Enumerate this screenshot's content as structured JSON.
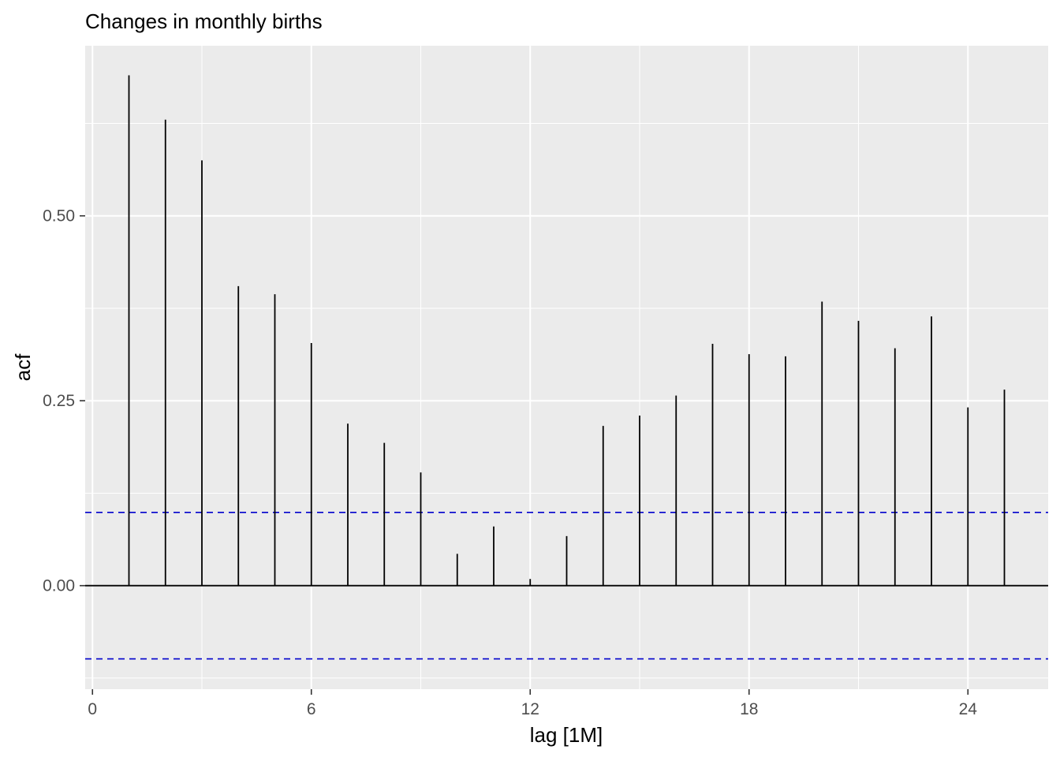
{
  "chart_data": {
    "type": "bar",
    "title": "Changes in monthly births",
    "xlabel": "lag [1M]",
    "ylabel": "acf",
    "x_ticks": [
      0,
      6,
      12,
      18,
      24
    ],
    "y_ticks": [
      0.0,
      0.25,
      0.5
    ],
    "x_tick_labels": [
      "0",
      "6",
      "12",
      "18",
      "24"
    ],
    "y_tick_labels": [
      "0.00",
      "0.25",
      "0.50"
    ],
    "xlim": [
      -0.2,
      26.2
    ],
    "ylim": [
      -0.14,
      0.73
    ],
    "grid": true,
    "confidence_bound": 0.099,
    "colors": {
      "panel": "#ebebeb",
      "grid": "#ffffff",
      "bar": "#000000",
      "bound": "#0000cc",
      "tick": "#333333"
    },
    "lags": [
      1,
      2,
      3,
      4,
      5,
      6,
      7,
      8,
      9,
      10,
      11,
      12,
      13,
      14,
      15,
      16,
      17,
      18,
      19,
      20,
      21,
      22,
      23,
      24,
      25
    ],
    "values": [
      0.69,
      0.63,
      0.575,
      0.405,
      0.394,
      0.328,
      0.219,
      0.193,
      0.153,
      0.043,
      0.08,
      0.009,
      0.067,
      0.216,
      0.23,
      0.257,
      0.327,
      0.313,
      0.31,
      0.384,
      0.358,
      0.321,
      0.364,
      0.241,
      0.265
    ]
  }
}
